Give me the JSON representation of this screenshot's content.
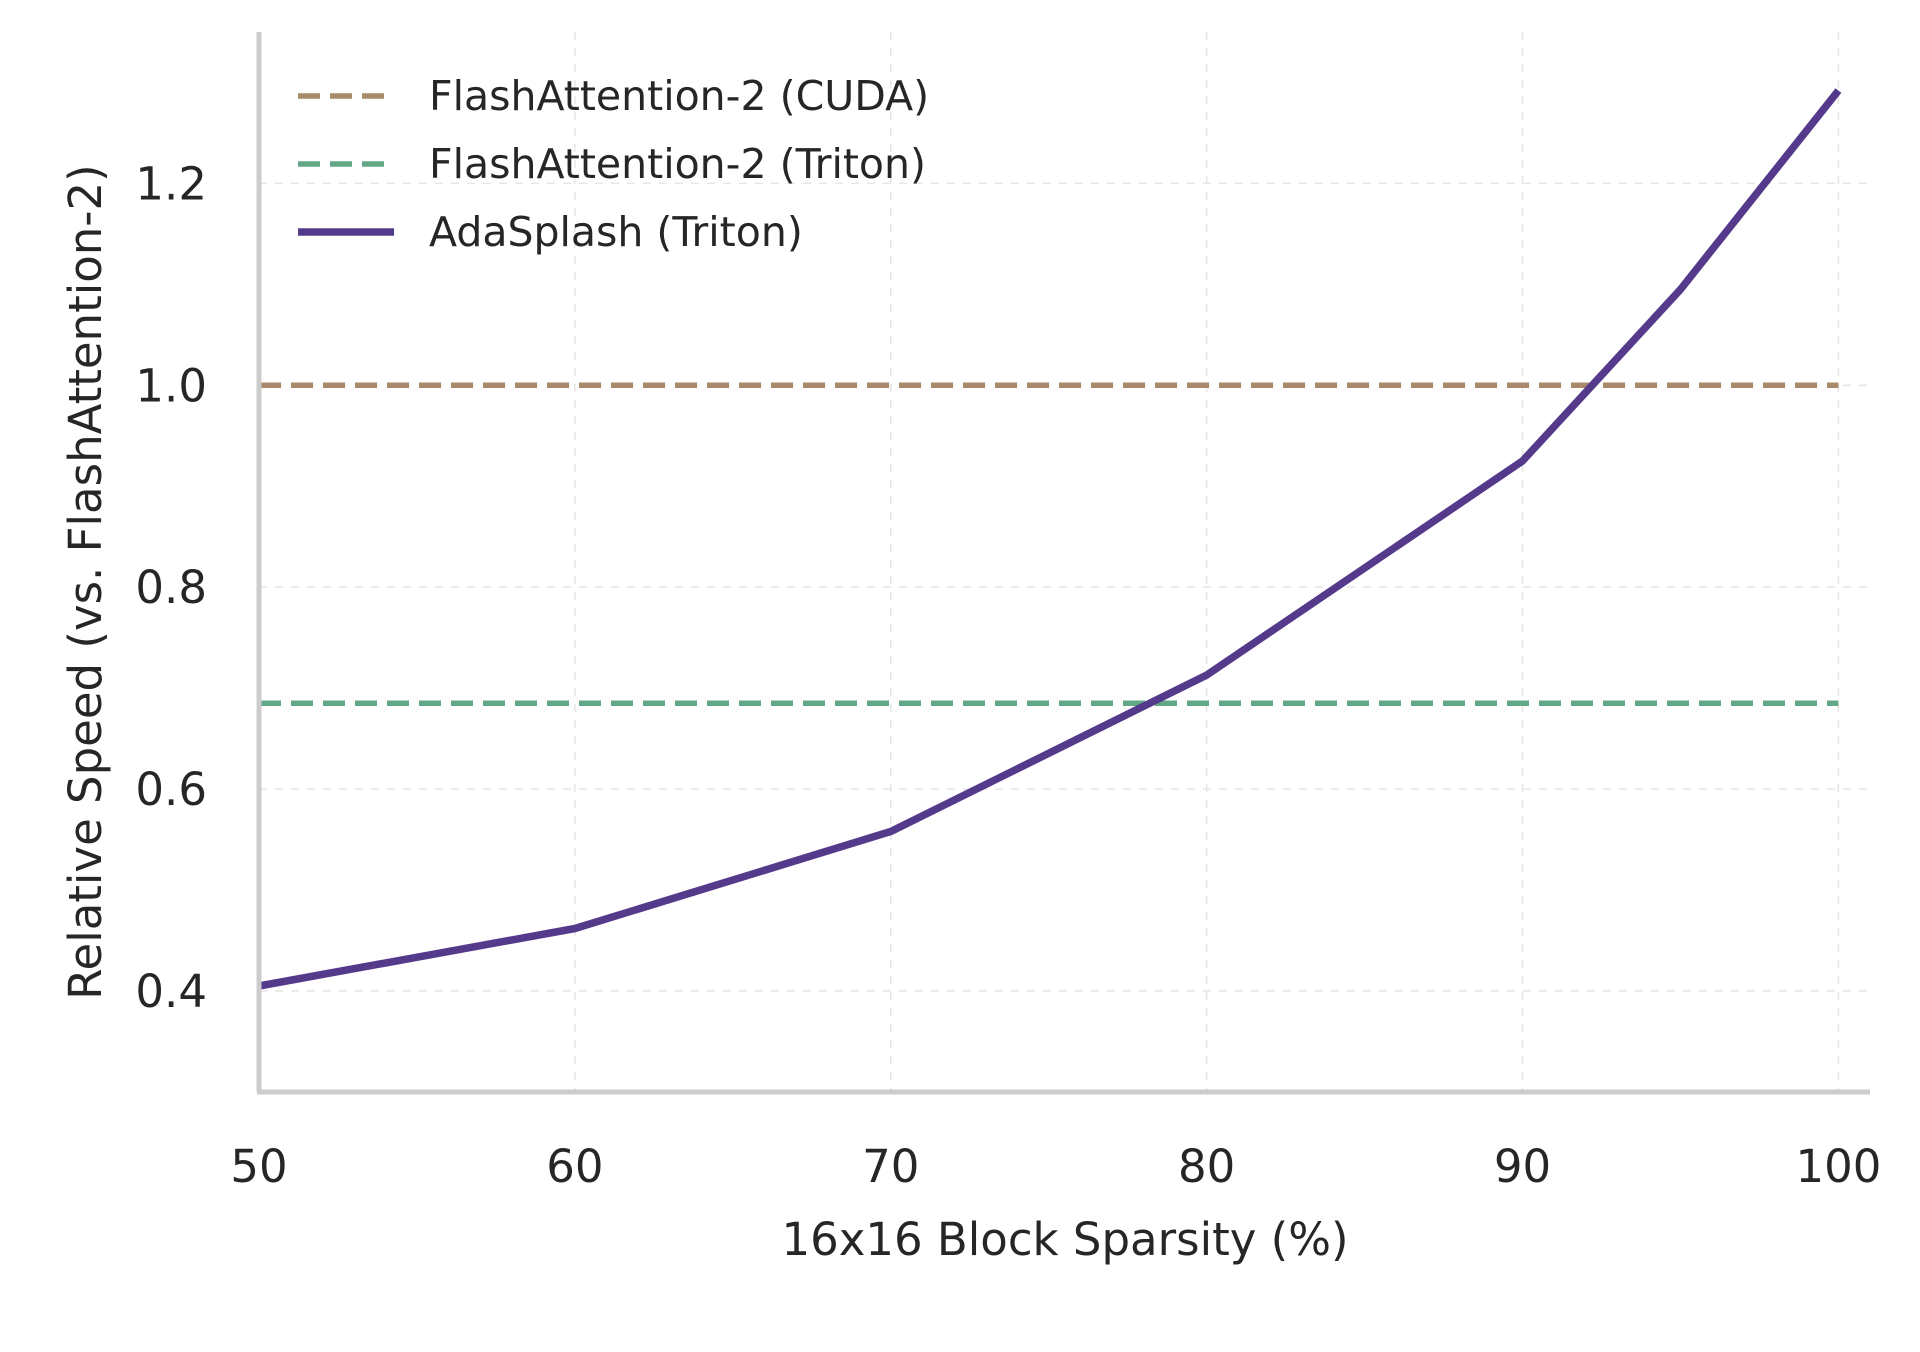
{
  "chart_data": {
    "type": "line",
    "title": "",
    "xlabel": "16x16 Block Sparsity (%)",
    "ylabel": "Relative Speed (vs. FlashAttention-2)",
    "xlim": [
      50,
      101
    ],
    "ylim": [
      0.3,
      1.35
    ],
    "xticks": [
      50,
      60,
      70,
      80,
      90,
      100
    ],
    "yticks": [
      0.4,
      0.6,
      0.8,
      1.0,
      1.2
    ],
    "grid": true,
    "legend_position": "top-left",
    "series": [
      {
        "name": "FlashAttention-2 (CUDA)",
        "style": "dashed",
        "color": "#a88a6a",
        "x": [
          50,
          100
        ],
        "y": [
          1.0,
          1.0
        ]
      },
      {
        "name": "FlashAttention-2 (Triton)",
        "style": "dashed",
        "color": "#62a887",
        "x": [
          50,
          100
        ],
        "y": [
          0.685,
          0.685
        ]
      },
      {
        "name": "AdaSplash (Triton)",
        "style": "solid",
        "color": "#553a8c",
        "x": [
          50,
          60,
          70,
          80,
          90,
          95,
          100
        ],
        "y": [
          0.405,
          0.462,
          0.558,
          0.713,
          0.925,
          1.095,
          1.292
        ]
      }
    ]
  }
}
